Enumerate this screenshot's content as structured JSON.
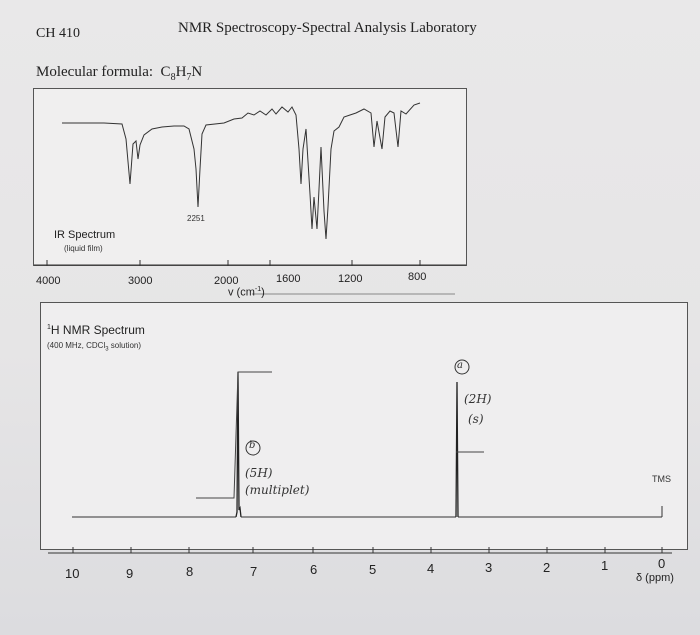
{
  "header": {
    "course": "CH 410",
    "title": "NMR Spectroscopy-Spectral Analysis Laboratory"
  },
  "molecular_formula": {
    "label": "Molecular formula:",
    "formula_main": "C",
    "sub1": "8",
    "mid": "H",
    "sub2": "7",
    "end": "N"
  },
  "ir": {
    "title": "IR Spectrum",
    "subtitle": "(liquid film)",
    "peak_label": "2251",
    "axis_label": "v (cm",
    "axis_label_exp": "-1",
    "axis_label_end": ")",
    "ticks": [
      "4000",
      "3000",
      "2000",
      "1600",
      "1200",
      "800"
    ]
  },
  "nmr": {
    "title_sup": "1",
    "title": "H NMR Spectrum",
    "subtitle": "(400 MHz, CDCl",
    "subtitle_sub": "3",
    "subtitle_end": " solution)",
    "tms_label": "TMS",
    "axis_label": "δ (ppm)",
    "ticks": [
      "10",
      "9",
      "8",
      "7",
      "6",
      "5",
      "4",
      "3",
      "2",
      "1",
      "0"
    ],
    "annotations": {
      "a_marker": "a",
      "a_integration": "(2H)",
      "a_multiplicity": "(s)",
      "b_marker": "b",
      "b_integration": "(5H)",
      "b_multiplicity": "(multiplet)"
    }
  },
  "chart_data": [
    {
      "type": "line",
      "title": "IR Spectrum",
      "subtitle": "(liquid film)",
      "xlabel": "v (cm-1)",
      "x_ticks": [
        4000,
        3000,
        2000,
        1600,
        1200,
        800
      ],
      "annotations": [
        "2251"
      ],
      "absorption_bands_cm-1": [
        3060,
        3030,
        2251,
        1600,
        1495,
        1455,
        1415,
        740,
        700
      ]
    },
    {
      "type": "line",
      "title": "1H NMR Spectrum",
      "subtitle": "(400 MHz, CDCl3 solution)",
      "xlabel": "δ (ppm)",
      "xlim": [
        10,
        0
      ],
      "x_ticks": [
        10,
        9,
        8,
        7,
        6,
        5,
        4,
        3,
        2,
        1,
        0
      ],
      "peaks": [
        {
          "label": "b",
          "shift_ppm": 7.3,
          "integration": "(5H)",
          "multiplicity": "(multiplet)"
        },
        {
          "label": "a",
          "shift_ppm": 3.7,
          "integration": "(2H)",
          "multiplicity": "(s)"
        },
        {
          "label": "TMS",
          "shift_ppm": 0.0
        }
      ]
    }
  ]
}
